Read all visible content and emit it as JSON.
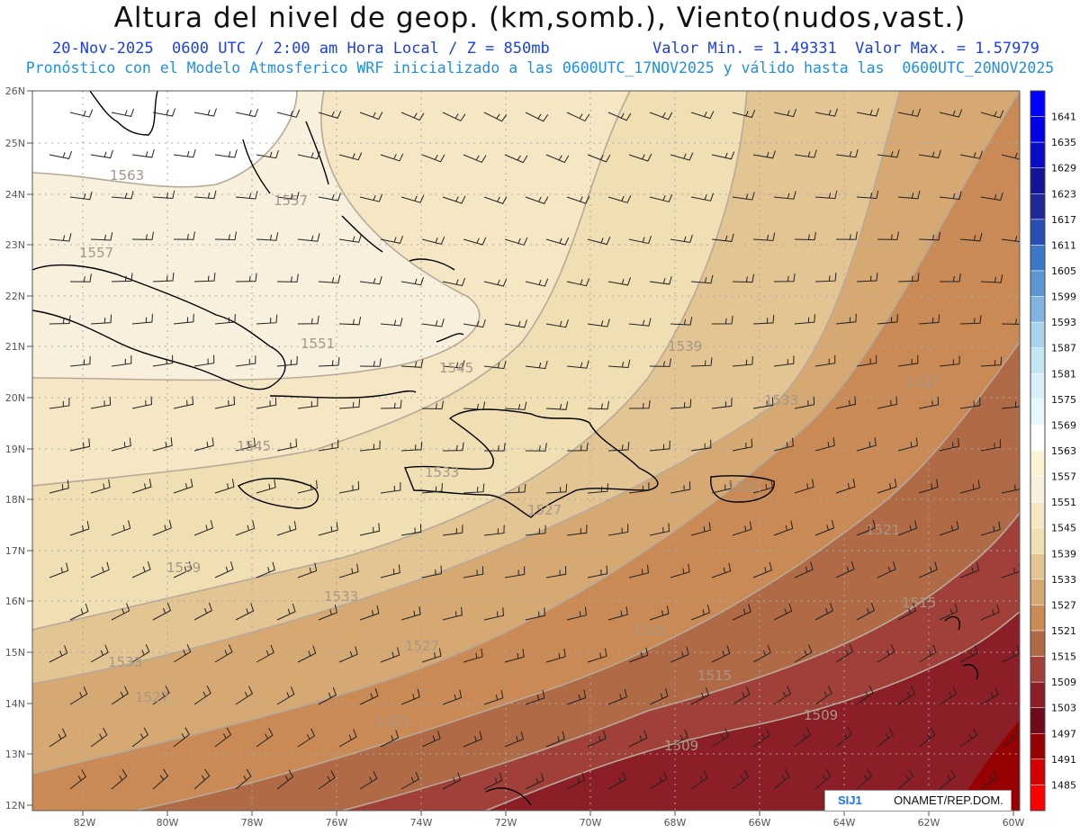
{
  "header": {
    "title": "Altura del nivel de geop. (km,somb.), Viento(nudos,vast.)",
    "line1_left": "20-Nov-2025  0600 UTC / 2:00 am Hora Local / Z = 850mb",
    "line1_right": "Valor Min. = 1.49331  Valor Max. = 1.57979",
    "line2": "Pronóstico con el Modelo Atmosferico WRF inicializado a las 0600UTC_17NOV2025 y válido hasta las  0600UTC_20NOV2025"
  },
  "axes": {
    "lat_labels": [
      "26N",
      "25N",
      "24N",
      "23N",
      "22N",
      "21N",
      "20N",
      "19N",
      "18N",
      "17N",
      "16N",
      "15N",
      "14N",
      "13N",
      "12N"
    ],
    "lon_labels": [
      "82W",
      "80W",
      "78W",
      "76W",
      "74W",
      "72W",
      "70W",
      "68W",
      "66W",
      "64W",
      "62W",
      "60W"
    ]
  },
  "colorbar": {
    "levels": [
      {
        "label": "1641",
        "color": "#0000ff"
      },
      {
        "label": "1635",
        "color": "#0000e6"
      },
      {
        "label": "1629",
        "color": "#0a0ac8"
      },
      {
        "label": "1623",
        "color": "#141496"
      },
      {
        "label": "1617",
        "color": "#1e2896"
      },
      {
        "label": "1611",
        "color": "#2850b4"
      },
      {
        "label": "1605",
        "color": "#3c78c8"
      },
      {
        "label": "1599",
        "color": "#5a96d2"
      },
      {
        "label": "1593",
        "color": "#82b4e1"
      },
      {
        "label": "1587",
        "color": "#aad2eb"
      },
      {
        "label": "1581",
        "color": "#c3e6f5"
      },
      {
        "label": "1575",
        "color": "#d7f0fa"
      },
      {
        "label": "1569",
        "color": "#e6f8fc"
      },
      {
        "label": "1563",
        "color": "#ffffff"
      },
      {
        "label": "1557",
        "color": "#fbf3d3"
      },
      {
        "label": "1551",
        "color": "#f8efdc"
      },
      {
        "label": "1545",
        "color": "#f5e7c4"
      },
      {
        "label": "1539",
        "color": "#efdfb2"
      },
      {
        "label": "1533",
        "color": "#e3c594"
      },
      {
        "label": "1527",
        "color": "#d6a872"
      },
      {
        "label": "1521",
        "color": "#c98a55"
      },
      {
        "label": "1515",
        "color": "#b06a45"
      },
      {
        "label": "1509",
        "color": "#a04038"
      },
      {
        "label": "1503",
        "color": "#8c1e28"
      },
      {
        "label": "1497",
        "color": "#6e0a1a"
      },
      {
        "label": "1491",
        "color": "#960000"
      },
      {
        "label": "1485",
        "color": "#d20000"
      },
      {
        "label": "",
        "color": "#ff0000"
      }
    ]
  },
  "contour_labels": [
    "1563",
    "1557",
    "1557",
    "1551",
    "1545",
    "1545",
    "1539",
    "1539",
    "1533",
    "1533",
    "1527",
    "1527",
    "1533",
    "1527",
    "1521",
    "1521",
    "1521",
    "1515",
    "1515",
    "1509",
    "1509",
    "1521",
    "1533",
    "1527"
  ],
  "credit": {
    "logo": "SIJ1",
    "org": "ONAMET/REP.DOM."
  }
}
